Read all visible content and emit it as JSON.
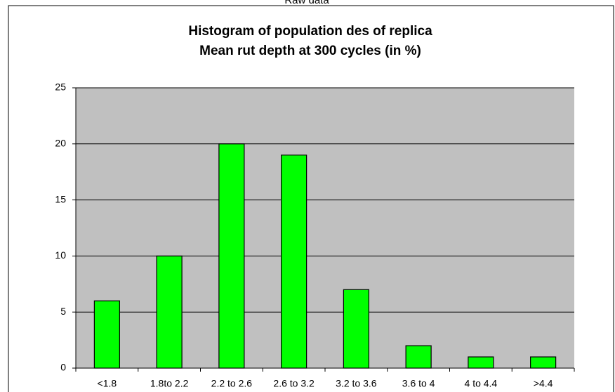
{
  "sheet_title": "Raw data",
  "chart_data": {
    "type": "bar",
    "title": [
      "Histogram of population des of replica",
      "Mean rut depth at 300 cycles (in %)"
    ],
    "categories": [
      "<1.8",
      "1.8to 2.2",
      "2.2 to 2.6",
      "2.6 to 3.2",
      "3.2 to 3.6",
      "3.6 to 4",
      "4 to 4.4",
      ">4.4"
    ],
    "values": [
      6,
      10,
      20,
      19,
      7,
      2,
      1,
      1
    ],
    "color": "#00ff00",
    "ylim": [
      0,
      25
    ],
    "yticks": [
      0,
      5,
      10,
      15,
      20,
      25
    ],
    "grid": true
  }
}
